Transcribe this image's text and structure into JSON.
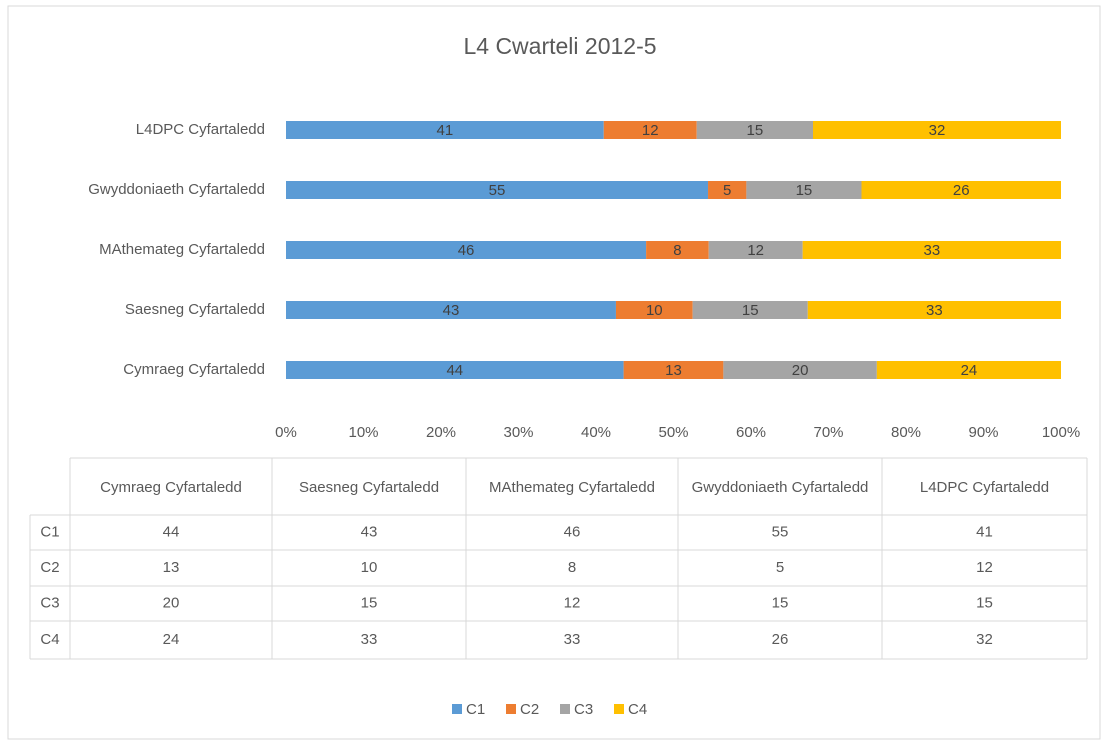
{
  "chart_data": {
    "type": "bar",
    "orientation": "horizontal",
    "stacking": "percent",
    "title": "L4 Cwarteli 2012-5",
    "categories": [
      "Cymraeg Cyfartaledd",
      "Saesneg Cyfartaledd",
      "MAthemateg Cyfartaledd",
      "Gwyddoniaeth Cyfartaledd",
      "L4DPC Cyfartaledd"
    ],
    "series": [
      {
        "name": "C1",
        "color": "#5b9bd5",
        "values": [
          44,
          43,
          46,
          55,
          41
        ]
      },
      {
        "name": "C2",
        "color": "#ed7d31",
        "values": [
          13,
          10,
          8,
          5,
          12
        ]
      },
      {
        "name": "C3",
        "color": "#a5a5a5",
        "values": [
          20,
          15,
          12,
          15,
          15
        ]
      },
      {
        "name": "C4",
        "color": "#ffc000",
        "values": [
          24,
          33,
          33,
          26,
          32
        ]
      }
    ],
    "xlim": [
      0,
      100
    ],
    "xticks": [
      {
        "value": 0,
        "label": "0%"
      },
      {
        "value": 10,
        "label": "10%"
      },
      {
        "value": 20,
        "label": "20%"
      },
      {
        "value": 30,
        "label": "30%"
      },
      {
        "value": 40,
        "label": "40%"
      },
      {
        "value": 50,
        "label": "50%"
      },
      {
        "value": 60,
        "label": "60%"
      },
      {
        "value": 70,
        "label": "70%"
      },
      {
        "value": 80,
        "label": "80%"
      },
      {
        "value": 90,
        "label": "90%"
      },
      {
        "value": 100,
        "label": "100%"
      }
    ],
    "grid": false,
    "data_table": true,
    "legend": "bottom"
  }
}
